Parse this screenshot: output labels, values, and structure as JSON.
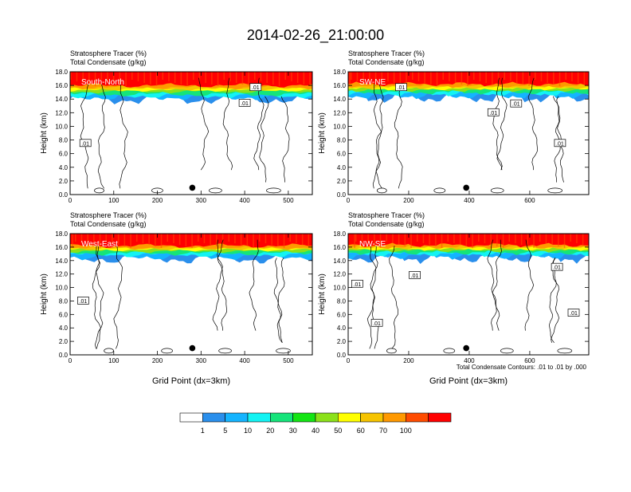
{
  "title": "2014-02-26_21:00:00",
  "panel_header": {
    "line1": "Stratosphere Tracer   (%)",
    "line2": "Total Condensate   (g/kg)"
  },
  "y_axis_label": "Height (km)",
  "x_axis_label": "Grid Point (dx=3km)",
  "contour_note": "Total Condensate Contours: .01 to .01 by .000",
  "colors": {
    "background": "#ffffff",
    "frame": "#000000",
    "contour": "#000000"
  },
  "colorbar": {
    "colors": [
      "#ffffff",
      "#2a8fec",
      "#14b4ff",
      "#13f3f3",
      "#15e47a",
      "#14e514",
      "#8be11a",
      "#ffff00",
      "#f6c400",
      "#ff9900",
      "#ff4c00",
      "#ff0000"
    ],
    "labels": [
      "1",
      "5",
      "10",
      "20",
      "30",
      "40",
      "50",
      "60",
      "70",
      "100"
    ]
  },
  "chart_data": [
    {
      "type": "heatmap",
      "panel": "top-left",
      "cross_section": "South-North",
      "title": "Stratosphere Tracer   (%)",
      "subtitle": "Total Condensate   (g/kg)",
      "xlabel": "",
      "ylabel": "Height (km)",
      "xlim": [
        0,
        555
      ],
      "ylim": [
        0,
        18
      ],
      "xticks": [
        0,
        100,
        200,
        300,
        400,
        500
      ],
      "yticks": [
        "0.0",
        "2.0",
        "4.0",
        "6.0",
        "8.0",
        "10.0",
        "12.0",
        "14.0",
        "16.0",
        "18.0"
      ],
      "tracer_layer": {
        "red_base_km": 16.0,
        "yellow_base_km": 15.3,
        "green_base_km": 14.7,
        "blue_base_km": 14.3
      },
      "contour_labels": [
        {
          "text": ".01",
          "x": 35,
          "y": 7.5
        },
        {
          "text": ".01",
          "x": 400,
          "y": 13.4
        },
        {
          "text": ".01",
          "x": 425,
          "y": 15.7
        }
      ],
      "marker": {
        "x": 280,
        "y": 1.0
      }
    },
    {
      "type": "heatmap",
      "panel": "top-right",
      "cross_section": "SW-NE",
      "title": "Stratosphere Tracer   (%)",
      "subtitle": "Total Condensate   (g/kg)",
      "xlabel": "",
      "ylabel": "Height (km)",
      "xlim": [
        0,
        795
      ],
      "ylim": [
        0,
        18
      ],
      "xticks": [
        0,
        200,
        400,
        600
      ],
      "yticks": [
        "0.0",
        "2.0",
        "4.0",
        "6.0",
        "8.0",
        "10.0",
        "12.0",
        "14.0",
        "16.0",
        "18.0"
      ],
      "tracer_layer": {
        "red_base_km": 16.2,
        "yellow_base_km": 15.5,
        "green_base_km": 15.0,
        "blue_base_km": 14.5
      },
      "contour_labels": [
        {
          "text": ".01",
          "x": 175,
          "y": 15.7
        },
        {
          "text": ".01",
          "x": 480,
          "y": 12.0
        },
        {
          "text": ".01",
          "x": 555,
          "y": 13.3
        },
        {
          "text": ".01",
          "x": 700,
          "y": 7.5
        }
      ],
      "marker": {
        "x": 390,
        "y": 1.0
      }
    },
    {
      "type": "heatmap",
      "panel": "bottom-left",
      "cross_section": "West-East",
      "title": "Stratosphere Tracer   (%)",
      "subtitle": "Total Condensate   (g/kg)",
      "xlabel": "Grid Point (dx=3km)",
      "ylabel": "Height (km)",
      "xlim": [
        0,
        555
      ],
      "ylim": [
        0,
        18
      ],
      "xticks": [
        0,
        100,
        200,
        300,
        400,
        500
      ],
      "yticks": [
        "0.0",
        "2.0",
        "4.0",
        "6.0",
        "8.0",
        "10.0",
        "12.0",
        "14.0",
        "16.0",
        "18.0"
      ],
      "tracer_layer": {
        "red_base_km": 16.2,
        "yellow_base_km": 15.6,
        "green_base_km": 15.1,
        "blue_base_km": 14.6
      },
      "contour_labels": [
        {
          "text": ".01",
          "x": 30,
          "y": 8.0
        }
      ],
      "marker": {
        "x": 280,
        "y": 1.0
      }
    },
    {
      "type": "heatmap",
      "panel": "bottom-right",
      "cross_section": "NW-SE",
      "title": "Stratosphere Tracer   (%)",
      "subtitle": "Total Condensate   (g/kg)",
      "xlabel": "Grid Point (dx=3km)",
      "ylabel": "Height (km)",
      "xlim": [
        0,
        795
      ],
      "ylim": [
        0,
        18
      ],
      "xticks": [
        0,
        200,
        400,
        600
      ],
      "yticks": [
        "0.0",
        "2.0",
        "4.0",
        "6.0",
        "8.0",
        "10.0",
        "12.0",
        "14.0",
        "16.0",
        "18.0"
      ],
      "tracer_layer": {
        "red_base_km": 16.3,
        "yellow_base_km": 15.7,
        "green_base_km": 15.2,
        "blue_base_km": 14.7
      },
      "contour_labels": [
        {
          "text": ".01",
          "x": 30,
          "y": 10.5
        },
        {
          "text": ".01",
          "x": 220,
          "y": 11.8
        },
        {
          "text": ".01",
          "x": 690,
          "y": 13.0
        },
        {
          "text": ".01",
          "x": 95,
          "y": 4.7
        },
        {
          "text": ".01",
          "x": 745,
          "y": 6.2
        }
      ],
      "marker": {
        "x": 390,
        "y": 1.0
      }
    }
  ]
}
